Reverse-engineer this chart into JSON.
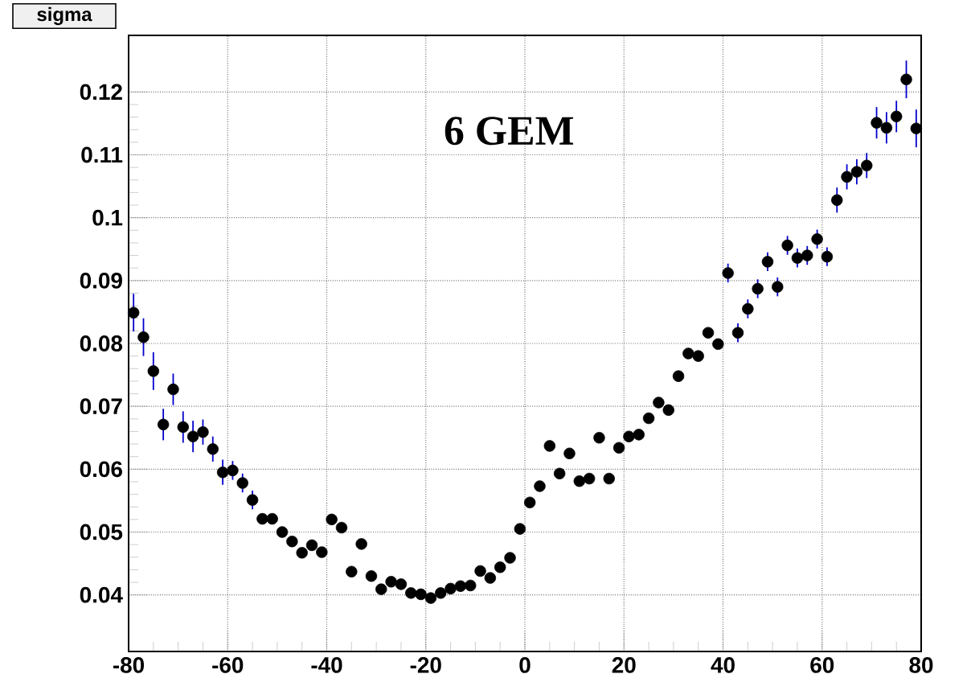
{
  "chart_data": {
    "type": "scatter",
    "title": "sigma",
    "annotations": [
      "6 GEM"
    ],
    "x": [
      -79,
      -77,
      -75,
      -73,
      -71,
      -69,
      -67,
      -65,
      -63,
      -61,
      -59,
      -57,
      -55,
      -53,
      -51,
      -49,
      -47,
      -45,
      -43,
      -41,
      -39,
      -37,
      -35,
      -33,
      -31,
      -29,
      -27,
      -25,
      -23,
      -21,
      -19,
      -17,
      -15,
      -13,
      -11,
      -9,
      -7,
      -5,
      -3,
      -1,
      1,
      3,
      5,
      7,
      9,
      11,
      13,
      15,
      17,
      19,
      21,
      23,
      25,
      27,
      29,
      31,
      33,
      35,
      37,
      39,
      41,
      43,
      45,
      47,
      49,
      51,
      53,
      55,
      57,
      59,
      61,
      63,
      65,
      67,
      69,
      71,
      73,
      75,
      77,
      79
    ],
    "values": [
      0.0849,
      0.081,
      0.0756,
      0.0671,
      0.0727,
      0.0667,
      0.0652,
      0.0659,
      0.0632,
      0.0595,
      0.0598,
      0.0578,
      0.0551,
      0.0521,
      0.0521,
      0.05,
      0.0485,
      0.0467,
      0.0479,
      0.0468,
      0.052,
      0.0507,
      0.0437,
      0.0481,
      0.043,
      0.0409,
      0.0421,
      0.0417,
      0.0403,
      0.0401,
      0.0395,
      0.0403,
      0.041,
      0.0414,
      0.0415,
      0.0438,
      0.0427,
      0.0444,
      0.0459,
      0.0505,
      0.0547,
      0.0573,
      0.0637,
      0.0593,
      0.0625,
      0.0581,
      0.0585,
      0.065,
      0.0585,
      0.0634,
      0.0652,
      0.0655,
      0.0681,
      0.0706,
      0.0694,
      0.0748,
      0.0784,
      0.078,
      0.0817,
      0.0799,
      0.0912,
      0.0817,
      0.0855,
      0.0887,
      0.093,
      0.089,
      0.0956,
      0.0936,
      0.094,
      0.0966,
      0.0938,
      0.1028,
      0.1065,
      0.1073,
      0.1083,
      0.1151,
      0.1143,
      0.1161,
      0.122,
      0.1142
    ],
    "errors": [
      0.003,
      0.003,
      0.003,
      0.0025,
      0.0025,
      0.0025,
      0.0025,
      0.002,
      0.002,
      0.002,
      0.0015,
      0.0015,
      0.0015,
      null,
      null,
      null,
      null,
      null,
      null,
      null,
      null,
      null,
      null,
      null,
      null,
      null,
      null,
      null,
      null,
      null,
      null,
      null,
      null,
      null,
      null,
      null,
      null,
      null,
      null,
      null,
      null,
      null,
      null,
      null,
      null,
      null,
      null,
      null,
      null,
      null,
      null,
      null,
      null,
      null,
      null,
      null,
      null,
      null,
      null,
      null,
      0.0015,
      0.0015,
      0.0015,
      0.0015,
      0.0015,
      0.0015,
      0.0015,
      0.0015,
      0.0015,
      0.0015,
      0.0015,
      0.002,
      0.002,
      0.002,
      0.002,
      0.0025,
      0.0025,
      0.0025,
      0.003,
      0.003
    ],
    "color": "#000000",
    "marker": "circle",
    "xlim": [
      -80,
      80
    ],
    "ylim": [
      0.031,
      0.129
    ],
    "xticks": [
      -80,
      -60,
      -40,
      -20,
      0,
      20,
      40,
      60,
      80
    ],
    "yticks": [
      0.04,
      0.05,
      0.06,
      0.07,
      0.08,
      0.09,
      0.1,
      0.11,
      0.12
    ],
    "grid": true
  }
}
